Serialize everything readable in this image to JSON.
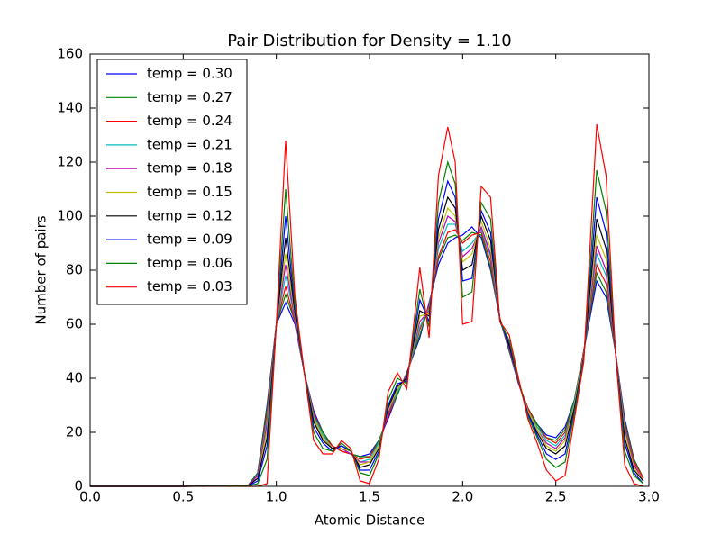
{
  "chart_data": {
    "type": "line",
    "title": "Pair Distribution for  Density = 1.10",
    "xlabel": "Atomic Distance",
    "ylabel": "Number of pairs",
    "xlim": [
      0,
      3.0
    ],
    "ylim": [
      0,
      160
    ],
    "xticks": [
      {
        "value": 0,
        "label": "0.0"
      },
      {
        "value": 0.5,
        "label": "0.5"
      },
      {
        "value": 1,
        "label": "1.0"
      },
      {
        "value": 1.5,
        "label": "1.5"
      },
      {
        "value": 2,
        "label": "2.0"
      },
      {
        "value": 2.5,
        "label": "2.5"
      },
      {
        "value": 3,
        "label": "3.0"
      }
    ],
    "yticks": [
      0,
      20,
      40,
      60,
      80,
      100,
      120,
      140,
      160
    ],
    "legend": "upper left",
    "x": [
      0,
      0.5,
      0.85,
      0.9,
      0.95,
      1.0,
      1.05,
      1.1,
      1.15,
      1.2,
      1.25,
      1.3,
      1.35,
      1.4,
      1.45,
      1.5,
      1.55,
      1.6,
      1.65,
      1.7,
      1.77,
      1.82,
      1.87,
      1.92,
      1.96,
      2.0,
      2.05,
      2.1,
      2.15,
      2.2,
      2.25,
      2.3,
      2.35,
      2.4,
      2.45,
      2.5,
      2.55,
      2.6,
      2.65,
      2.72,
      2.77,
      2.82,
      2.87,
      2.92,
      2.97
    ],
    "series": [
      {
        "name": "temp = 0.30",
        "color": "#0000ff",
        "values": [
          0,
          0,
          0.5,
          5,
          30,
          60,
          68,
          60,
          42,
          28,
          20,
          15,
          13,
          12,
          11,
          12,
          17,
          25,
          34,
          42,
          55,
          68,
          82,
          90,
          92,
          93,
          96,
          92,
          80,
          62,
          50,
          38,
          29,
          23,
          19,
          18,
          22,
          32,
          50,
          76,
          70,
          50,
          25,
          10,
          3
        ]
      },
      {
        "name": "temp = 0.27",
        "color": "#008000",
        "values": [
          0,
          0,
          0.5,
          5,
          29,
          60,
          71,
          61,
          42,
          27,
          20,
          15,
          13,
          12,
          11,
          11,
          17,
          26,
          34,
          42,
          56,
          67,
          84,
          92,
          93,
          91,
          94,
          93,
          81,
          62,
          50,
          38,
          29,
          23,
          18,
          17,
          21,
          32,
          50,
          79,
          72,
          50,
          24,
          10,
          3
        ]
      },
      {
        "name": "temp = 0.24",
        "color": "#ff0000",
        "values": [
          0,
          0,
          0.5,
          4,
          27,
          60,
          74,
          61,
          42,
          27,
          19,
          15,
          13,
          12,
          10,
          11,
          16,
          26,
          35,
          41,
          58,
          67,
          85,
          94,
          95,
          90,
          93,
          94,
          83,
          62,
          51,
          38,
          29,
          22,
          18,
          16,
          20,
          31,
          50,
          82,
          75,
          50,
          23,
          9,
          3
        ]
      },
      {
        "name": "temp = 0.21",
        "color": "#00bfbf",
        "values": [
          0,
          0,
          0.4,
          4,
          25,
          60,
          78,
          62,
          42,
          26,
          19,
          14,
          14,
          12,
          9,
          10,
          16,
          27,
          35,
          41,
          59,
          66,
          88,
          97,
          97,
          87,
          90,
          95,
          85,
          62,
          51,
          38,
          28,
          22,
          17,
          15,
          19,
          31,
          49,
          86,
          78,
          50,
          22,
          8,
          2
        ]
      },
      {
        "name": "temp = 0.18",
        "color": "#bf00bf",
        "values": [
          0,
          0,
          0.4,
          4,
          23,
          60,
          82,
          62,
          42,
          25,
          18,
          14,
          14,
          12,
          9,
          9,
          15,
          27,
          36,
          41,
          61,
          65,
          90,
          100,
          98,
          85,
          88,
          96,
          86,
          62,
          51,
          38,
          28,
          21,
          16,
          14,
          18,
          30,
          49,
          89,
          80,
          50,
          21,
          8,
          2
        ]
      },
      {
        "name": "temp = 0.15",
        "color": "#bfbf00",
        "values": [
          0,
          0,
          0.3,
          3,
          21,
          60,
          86,
          63,
          42,
          25,
          18,
          14,
          14,
          13,
          8,
          9,
          15,
          28,
          36,
          40,
          63,
          64,
          92,
          103,
          100,
          83,
          86,
          98,
          88,
          62,
          52,
          39,
          28,
          21,
          15,
          13,
          17,
          30,
          49,
          93,
          84,
          50,
          20,
          7,
          2
        ]
      },
      {
        "name": "temp = 0.12",
        "color": "#000000",
        "values": [
          0,
          0,
          0.3,
          3,
          18,
          60,
          92,
          64,
          42,
          24,
          17,
          14,
          15,
          13,
          7,
          8,
          14,
          29,
          37,
          40,
          65,
          63,
          95,
          107,
          103,
          80,
          82,
          100,
          91,
          62,
          52,
          39,
          27,
          20,
          14,
          12,
          15,
          29,
          48,
          99,
          88,
          50,
          18,
          6,
          2
        ]
      },
      {
        "name": "temp = 0.09",
        "color": "#0000ff",
        "values": [
          0,
          0,
          0.2,
          2,
          15,
          60,
          100,
          65,
          42,
          22,
          16,
          13,
          15,
          13,
          6,
          6,
          13,
          30,
          38,
          39,
          69,
          61,
          99,
          113,
          107,
          76,
          77,
          102,
          94,
          61,
          53,
          39,
          27,
          19,
          12,
          10,
          12,
          28,
          48,
          107,
          94,
          50,
          16,
          5,
          1
        ]
      },
      {
        "name": "temp = 0.06",
        "color": "#008000",
        "values": [
          0,
          0,
          0.2,
          1,
          10,
          60,
          110,
          67,
          42,
          20,
          14,
          13,
          16,
          13,
          5,
          4,
          12,
          32,
          40,
          38,
          73,
          59,
          105,
          120,
          112,
          70,
          72,
          105,
          99,
          61,
          54,
          39,
          26,
          18,
          10,
          7,
          9,
          27,
          47,
          117,
          102,
          50,
          13,
          4,
          1
        ]
      },
      {
        "name": "temp = 0.03",
        "color": "#ff0000",
        "values": [
          0,
          0,
          0,
          0,
          1,
          60,
          128,
          70,
          42,
          17,
          12,
          12,
          17,
          14,
          2,
          1,
          10,
          35,
          42,
          36,
          81,
          55,
          115,
          133,
          120,
          60,
          61,
          111,
          107,
          61,
          56,
          40,
          25,
          16,
          6,
          2,
          4,
          25,
          46,
          134,
          115,
          50,
          8,
          1,
          0
        ]
      }
    ]
  }
}
